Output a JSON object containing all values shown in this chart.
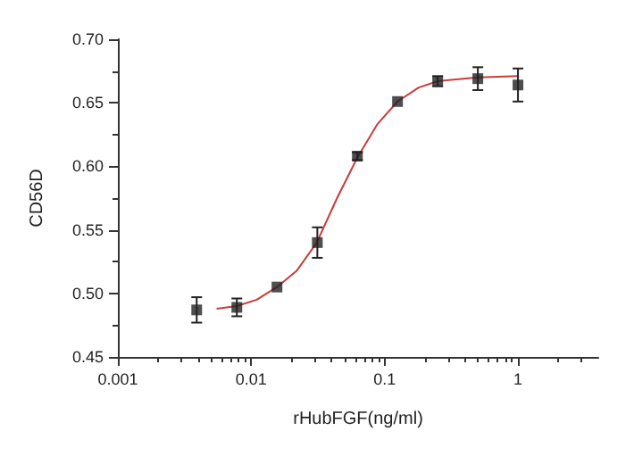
{
  "chart_data": {
    "type": "scatter",
    "xlabel": "rHubFGF(ng/ml)",
    "ylabel": "CD56D",
    "log": "x",
    "grid": false,
    "marker": "square",
    "xlim": [
      0.001,
      4
    ],
    "xticks": [
      0.001,
      0.01,
      0.1,
      1
    ],
    "ylim": [
      0.45,
      0.7
    ],
    "yticks": [
      0.45,
      {
        "value": 0.5,
        "label": "0.50"
      },
      0.55,
      {
        "value": 0.6,
        "label": "0.60"
      },
      0.65,
      {
        "value": 0.7,
        "label": "0.70"
      }
    ],
    "series": [
      {
        "color": "#222222",
        "x": [
          0.0039,
          0.0078,
          0.0156,
          0.0313,
          0.0625,
          0.125,
          0.25,
          0.5,
          1
        ],
        "values": [
          0.487,
          0.489,
          0.505,
          0.54,
          0.608,
          0.651,
          0.667,
          0.669,
          0.664
        ],
        "errors": [
          0.01,
          0.007,
          null,
          0.012,
          0.003,
          null,
          0.004,
          0.009,
          0.013
        ]
      },
      {
        "type": "line",
        "color": "#c83c3c",
        "line_style": "solid",
        "marker": "none",
        "x": [
          0.0055,
          0.0078,
          0.011,
          0.0156,
          0.022,
          0.031,
          0.044,
          0.0625,
          0.088,
          0.125,
          0.18,
          0.25,
          0.5,
          1
        ],
        "values": [
          0.488,
          0.49,
          0.495,
          0.505,
          0.518,
          0.54,
          0.575,
          0.607,
          0.633,
          0.651,
          0.662,
          0.667,
          0.67,
          0.671
        ]
      }
    ]
  }
}
